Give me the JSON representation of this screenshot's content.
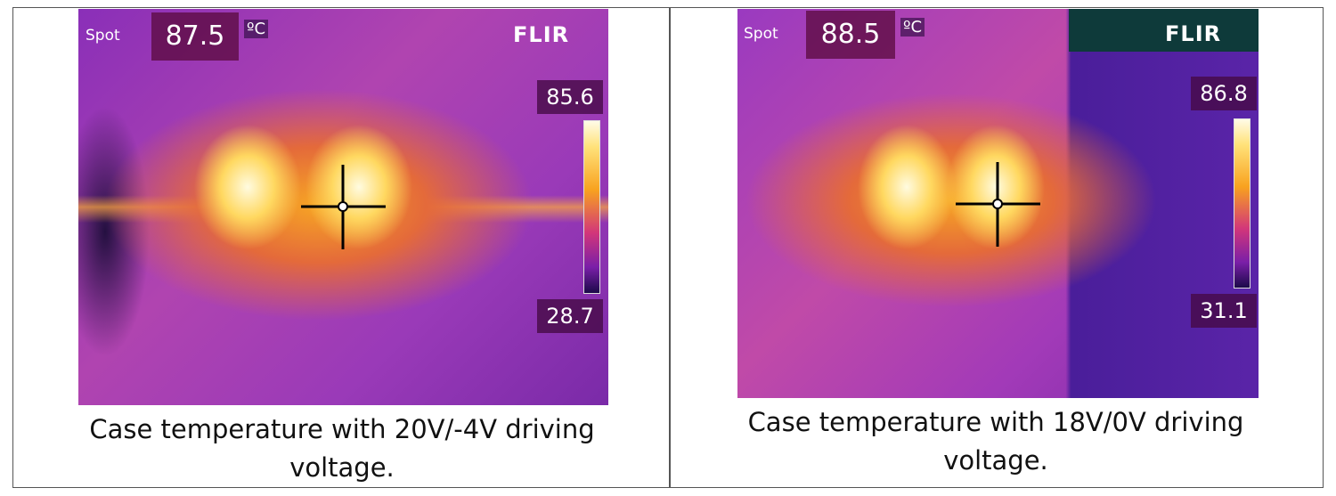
{
  "panels": [
    {
      "spot_label": "Spot",
      "spot_value": 87.5,
      "unit": "ºC",
      "brand": "FLIR",
      "scale_max": 85.6,
      "scale_min": 28.7,
      "caption": "Case temperature with 20V/-4V driving voltage."
    },
    {
      "spot_label": "Spot",
      "spot_value": 88.5,
      "unit": "ºC",
      "brand": "FLIR",
      "scale_max": 86.8,
      "scale_min": 31.1,
      "caption": "Case temperature with 18V/0V driving voltage."
    }
  ]
}
